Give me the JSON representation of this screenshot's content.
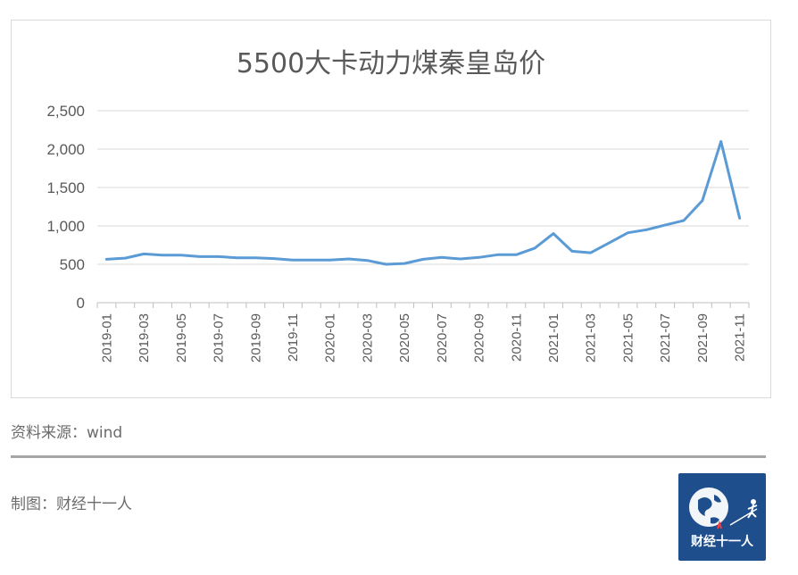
{
  "chart_data": {
    "type": "line",
    "title": "5500大卡动力煤秦皇岛价",
    "ylim": [
      0,
      2500
    ],
    "yticks": [
      "0",
      "500",
      "1,000",
      "1,500",
      "2,000",
      "2,500"
    ],
    "ytick_values": [
      0,
      500,
      1000,
      1500,
      2000,
      2500
    ],
    "x": [
      "2019-01",
      "2019-02",
      "2019-03",
      "2019-04",
      "2019-05",
      "2019-06",
      "2019-07",
      "2019-08",
      "2019-09",
      "2019-10",
      "2019-11",
      "2019-12",
      "2020-01",
      "2020-02",
      "2020-03",
      "2020-04",
      "2020-05",
      "2020-06",
      "2020-07",
      "2020-08",
      "2020-09",
      "2020-10",
      "2020-11",
      "2020-12",
      "2021-01",
      "2021-02",
      "2021-03",
      "2021-04",
      "2021-05",
      "2021-06",
      "2021-07",
      "2021-08",
      "2021-09",
      "2021-10",
      "2021-11"
    ],
    "xtick_labels": [
      "2019-01",
      "2019-03",
      "2019-05",
      "2019-07",
      "2019-09",
      "2019-11",
      "2020-01",
      "2020-03",
      "2020-05",
      "2020-07",
      "2020-09",
      "2020-11",
      "2021-01",
      "2021-03",
      "2021-05",
      "2021-07",
      "2021-09",
      "2021-11"
    ],
    "series": [
      {
        "values": [
          565,
          580,
          635,
          620,
          620,
          600,
          600,
          585,
          585,
          575,
          555,
          555,
          555,
          570,
          550,
          500,
          510,
          565,
          590,
          570,
          590,
          625,
          625,
          710,
          900,
          670,
          650,
          780,
          910,
          950,
          1010,
          1070,
          1330,
          2100,
          1100
        ]
      }
    ],
    "line_color": "#5b9bd5",
    "grid": true
  },
  "footer": {
    "source": "资料来源：wind",
    "credit": "制图：财经十一人",
    "logo_text": "财经十一人"
  }
}
